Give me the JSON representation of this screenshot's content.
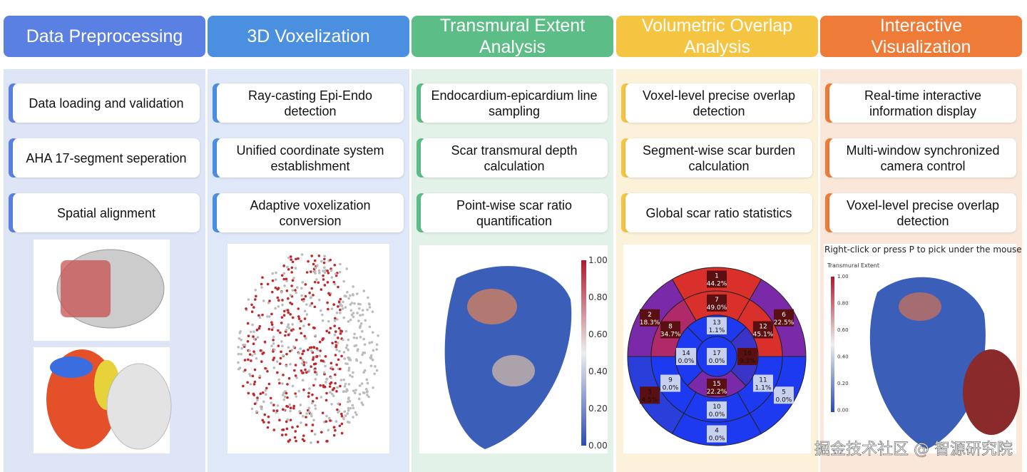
{
  "columns": [
    {
      "title": "Data Preprocessing",
      "color": "#5b80e3",
      "tint": "#dde5f7",
      "steps": [
        "Data loading and validation",
        "AHA 17-segment seperation",
        "Spatial alignment"
      ]
    },
    {
      "title": "3D Voxelization",
      "color": "#4a8fe0",
      "tint": "#dfe8f8",
      "steps": [
        "Ray-casting Epi-Endo detection",
        "Unified coordinate system establishment",
        "Adaptive voxelization conversion"
      ]
    },
    {
      "title": "Transmural Extent Analysis",
      "color": "#5cbd87",
      "tint": "#e2f2e8",
      "steps": [
        "Endocardium-epicardium line sampling",
        "Scar transmural depth calculation",
        "Point-wise scar ratio quantification"
      ]
    },
    {
      "title": "Volumetric Overlap Analysis",
      "color": "#f5c441",
      "tint": "#fcf2da",
      "steps": [
        "Voxel-level precise overlap detection",
        "Segment-wise scar burden calculation",
        "Global scar ratio statistics"
      ]
    },
    {
      "title": "Interactive Visualization",
      "color": "#ee7b37",
      "tint": "#fbe7da",
      "steps": [
        "Real-time interactive information display",
        "Multi-window synchronized camera control",
        "Voxel-level precise overlap detection"
      ]
    }
  ],
  "colorbar": {
    "ticks": [
      "1.00",
      "0.80",
      "0.60",
      "0.40",
      "0.20",
      "0.00"
    ]
  },
  "bullseye": {
    "segments": [
      {
        "label": "1",
        "value": "44.2%",
        "color": "#d9302b"
      },
      {
        "label": "2",
        "value": "18.3%",
        "color": "#7a2aa8"
      },
      {
        "label": "3",
        "value": "4.5%",
        "color": "#2a3fd9"
      },
      {
        "label": "4",
        "value": "0.0%",
        "color": "#1d3af0"
      },
      {
        "label": "5",
        "value": "0.0%",
        "color": "#1d3af0"
      },
      {
        "label": "6",
        "value": "22.5%",
        "color": "#7a2aa8"
      },
      {
        "label": "7",
        "value": "49.0%",
        "color": "#d9302b"
      },
      {
        "label": "8",
        "value": "34.7%",
        "color": "#b02a6a"
      },
      {
        "label": "9",
        "value": "0.0%",
        "color": "#1d3af0"
      },
      {
        "label": "10",
        "value": "0.0%",
        "color": "#1d3af0"
      },
      {
        "label": "11",
        "value": "1.1%",
        "color": "#1d3af0"
      },
      {
        "label": "12",
        "value": "45.1%",
        "color": "#d9302b"
      },
      {
        "label": "13",
        "value": "1.1%",
        "color": "#1d3af0"
      },
      {
        "label": "14",
        "value": "0.0%",
        "color": "#1d3af0"
      },
      {
        "label": "15",
        "value": "22.2%",
        "color": "#7a2aa8"
      },
      {
        "label": "16",
        "value": "9.3%",
        "color": "#3a35c8"
      },
      {
        "label": "17",
        "value": "0.0%",
        "color": "#1d3af0"
      }
    ]
  },
  "viewer": {
    "hint": "Right-click or press P to pick under the mouse",
    "legend_title": "Transmural Extent",
    "ticks": [
      "1.00",
      "0.80",
      "0.60",
      "0.40",
      "0.20",
      "0.00"
    ]
  },
  "watermark": "掘金技术社区 @ 智源研究院"
}
